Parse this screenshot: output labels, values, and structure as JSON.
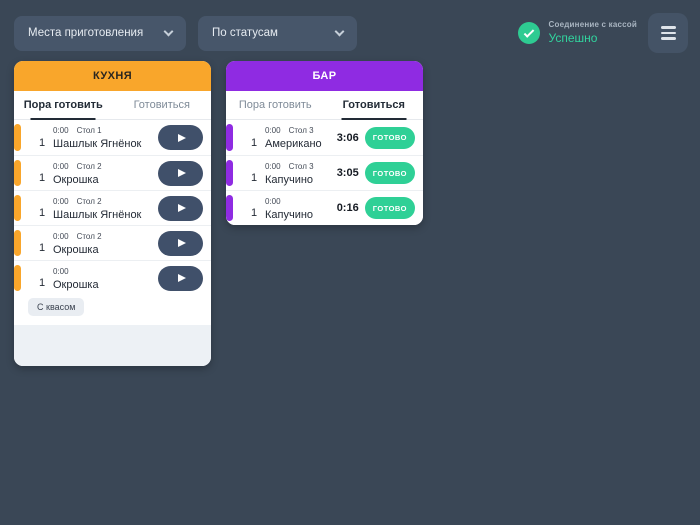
{
  "topbar": {
    "filters": [
      {
        "label": "Места приготовления"
      },
      {
        "label": "По статусам"
      }
    ],
    "connection": {
      "label": "Соединение с кассой",
      "status": "Успешно"
    }
  },
  "icons": {
    "dropdown": "chevron-down",
    "connection": "check-circle",
    "menu": "hamburger",
    "start_order": "play-triangle"
  },
  "colors": {
    "background": "#3a4756",
    "kitchen_accent": "#f9a62b",
    "bar_accent": "#8f2be2",
    "success_green": "#2ecb92",
    "done_button": "#2fd096",
    "play_button": "#40506a"
  },
  "stations": [
    {
      "name": "КУХНЯ",
      "accent": "#f9a62b",
      "tabs": [
        {
          "label": "Пора готовить",
          "active": true
        },
        {
          "label": "Готовиться",
          "active": false
        }
      ],
      "orders": [
        {
          "qty": "1",
          "time": "0:00",
          "table": "Стол 1",
          "name": "Шашлык Ягнёнок"
        },
        {
          "qty": "1",
          "time": "0:00",
          "table": "Стол 2",
          "name": "Окрошка"
        },
        {
          "qty": "1",
          "time": "0:00",
          "table": "Стол 2",
          "name": "Шашлык Ягнёнок"
        },
        {
          "qty": "1",
          "time": "0:00",
          "table": "Стол 2",
          "name": "Окрошка"
        },
        {
          "qty": "1",
          "time": "0:00",
          "table": "",
          "name": "Окрошка",
          "modifier": "С квасом"
        }
      ]
    },
    {
      "name": "БАР",
      "accent": "#8f2be2",
      "tabs": [
        {
          "label": "Пора готовить",
          "active": false
        },
        {
          "label": "Готовиться",
          "active": true
        }
      ],
      "orders": [
        {
          "qty": "1",
          "time": "0:00",
          "table": "Стол 3",
          "name": "Американо",
          "timer": "3:06",
          "done_label": "ГОТОВО"
        },
        {
          "qty": "1",
          "time": "0:00",
          "table": "Стол 3",
          "name": "Капучино",
          "timer": "3:05",
          "done_label": "ГОТОВО"
        },
        {
          "qty": "1",
          "time": "0:00",
          "table": "",
          "name": "Капучино",
          "timer": "0:16",
          "done_label": "ГОТОВО"
        }
      ]
    }
  ]
}
